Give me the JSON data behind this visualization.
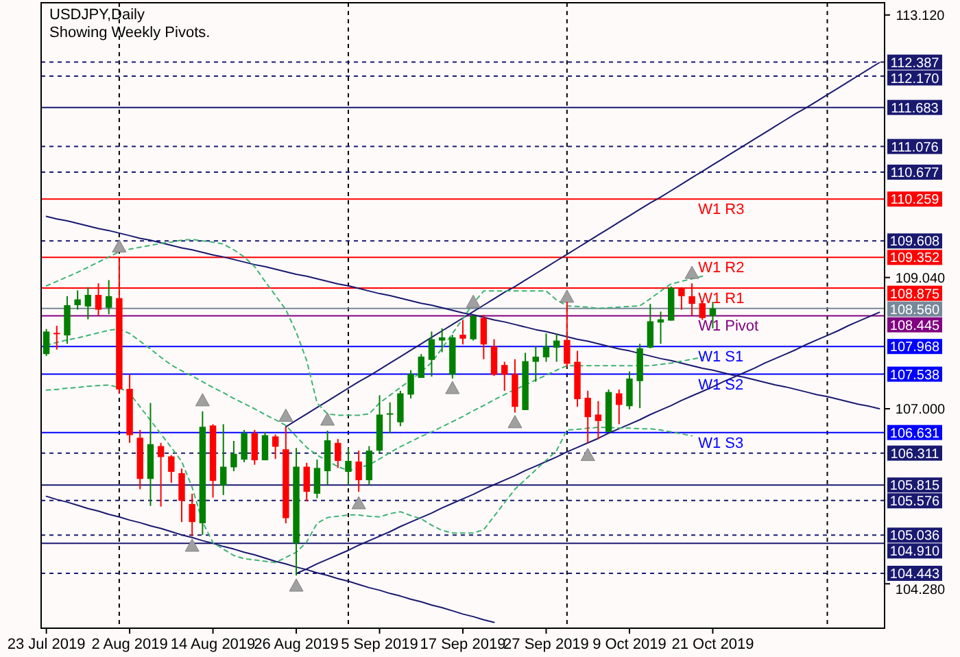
{
  "chart_data": {
    "type": "candlestick",
    "title": "USDJPY,Daily",
    "subtitle": "Showing Weekly Pivots.",
    "categories": [
      "23 Jul 2019",
      null,
      null,
      null,
      null,
      null,
      null,
      null,
      "2 Aug 2019",
      null,
      null,
      null,
      null,
      null,
      null,
      null,
      "14 Aug 2019",
      null,
      null,
      null,
      null,
      null,
      null,
      null,
      "26 Aug 2019",
      null,
      null,
      null,
      null,
      null,
      null,
      null,
      "5 Sep 2019",
      null,
      null,
      null,
      null,
      null,
      null,
      null,
      "17 Sep 2019",
      null,
      null,
      null,
      null,
      null,
      null,
      null,
      "27 Sep 2019",
      null,
      null,
      null,
      null,
      null,
      null,
      null,
      "9 Oct 2019",
      null,
      null,
      null,
      null,
      null,
      null,
      null,
      "21 Oct 2019",
      null,
      null,
      null,
      null,
      null,
      null,
      null,
      null,
      null,
      null,
      null,
      null,
      null,
      null,
      null,
      null
    ],
    "annotations": [
      {
        "text": "W1 R3",
        "y": 110.259
      },
      {
        "text": "W1 R2",
        "y": 109.352
      },
      {
        "text": "W1 R1",
        "y": 108.875
      },
      {
        "text": "W1 Pivot",
        "y": 108.445
      },
      {
        "text": "W1 S1",
        "y": 107.968
      },
      {
        "text": "W1 S2",
        "y": 107.538
      },
      {
        "text": "W1 S3",
        "y": 106.631
      }
    ],
    "ohlc": [
      [
        107.85,
        108.24,
        107.82,
        108.2
      ],
      [
        108.18,
        108.29,
        107.92,
        108.17
      ],
      [
        108.14,
        108.75,
        108.01,
        108.61
      ],
      [
        108.61,
        108.84,
        108.54,
        108.7
      ],
      [
        108.59,
        108.89,
        108.39,
        108.77
      ],
      [
        108.77,
        108.95,
        108.45,
        108.54
      ],
      [
        108.57,
        109.0,
        108.47,
        108.75
      ],
      [
        108.72,
        109.34,
        107.24,
        107.3
      ],
      [
        107.31,
        107.53,
        106.47,
        106.59
      ],
      [
        106.55,
        106.67,
        105.75,
        105.91
      ],
      [
        105.91,
        107.09,
        105.49,
        106.45
      ],
      [
        106.42,
        106.47,
        105.48,
        106.25
      ],
      [
        106.26,
        106.28,
        105.85,
        106.02
      ],
      [
        106.0,
        106.07,
        105.24,
        105.57
      ],
      [
        105.52,
        105.68,
        105.02,
        105.24
      ],
      [
        105.22,
        106.96,
        105.04,
        106.72
      ],
      [
        106.74,
        106.76,
        105.62,
        105.88
      ],
      [
        105.81,
        106.76,
        105.66,
        106.1
      ],
      [
        106.09,
        106.5,
        106.03,
        106.3
      ],
      [
        106.21,
        106.67,
        106.17,
        106.62
      ],
      [
        106.62,
        106.67,
        106.13,
        106.2
      ],
      [
        106.2,
        106.64,
        106.2,
        106.59
      ],
      [
        106.57,
        106.6,
        106.22,
        106.41
      ],
      [
        106.37,
        106.72,
        105.22,
        105.3
      ],
      [
        104.91,
        106.39,
        104.41,
        106.1
      ],
      [
        106.1,
        106.16,
        105.56,
        105.71
      ],
      [
        105.68,
        106.21,
        105.61,
        106.08
      ],
      [
        106.03,
        106.66,
        105.82,
        106.51
      ],
      [
        106.47,
        106.53,
        106.08,
        106.19
      ],
      [
        106.02,
        106.39,
        105.82,
        106.19
      ],
      [
        106.18,
        106.35,
        105.71,
        105.89
      ],
      [
        105.89,
        106.42,
        105.82,
        106.35
      ],
      [
        106.35,
        107.21,
        106.3,
        106.91
      ],
      [
        106.91,
        107.1,
        106.62,
        106.93
      ],
      [
        106.79,
        107.28,
        106.73,
        107.24
      ],
      [
        107.22,
        107.6,
        107.16,
        107.54
      ],
      [
        107.48,
        107.85,
        107.48,
        107.81
      ],
      [
        107.76,
        108.2,
        107.5,
        108.08
      ],
      [
        108.06,
        108.25,
        107.88,
        108.11
      ],
      [
        107.53,
        108.15,
        107.47,
        108.11
      ],
      [
        108.15,
        108.38,
        108.0,
        108.09
      ],
      [
        108.08,
        108.46,
        108.06,
        108.44
      ],
      [
        108.41,
        108.46,
        107.77,
        108.0
      ],
      [
        107.97,
        108.08,
        107.51,
        107.53
      ],
      [
        107.68,
        107.73,
        107.28,
        107.53
      ],
      [
        107.54,
        107.77,
        106.94,
        107.03
      ],
      [
        106.98,
        107.87,
        106.98,
        107.74
      ],
      [
        107.73,
        107.97,
        107.42,
        107.81
      ],
      [
        107.8,
        108.17,
        107.73,
        107.97
      ],
      [
        107.95,
        108.17,
        107.73,
        108.06
      ],
      [
        108.07,
        108.66,
        107.65,
        107.7
      ],
      [
        107.73,
        107.9,
        107.03,
        107.15
      ],
      [
        107.17,
        107.28,
        106.47,
        106.87
      ],
      [
        106.91,
        107.12,
        106.53,
        106.81
      ],
      [
        106.64,
        107.3,
        106.64,
        107.26
      ],
      [
        107.24,
        107.3,
        106.76,
        107.06
      ],
      [
        107.04,
        107.58,
        106.99,
        107.47
      ],
      [
        107.43,
        108.01,
        107.01,
        107.94
      ],
      [
        107.95,
        108.63,
        107.94,
        108.36
      ],
      [
        108.34,
        108.51,
        108.01,
        108.39
      ],
      [
        108.37,
        108.9,
        108.37,
        108.88
      ],
      [
        108.88,
        108.89,
        108.54,
        108.75
      ],
      [
        108.75,
        108.95,
        108.45,
        108.63
      ],
      [
        108.64,
        108.68,
        108.38,
        108.41
      ],
      [
        108.44,
        108.66,
        108.25,
        108.56
      ],
      null,
      null,
      null,
      null,
      null,
      null,
      null,
      null,
      null,
      null,
      null,
      null,
      null,
      null,
      null,
      null
    ],
    "series": [
      {
        "type": "line",
        "color": "#191970",
        "values": [
          109.99,
          109.95,
          109.92,
          109.88,
          109.84,
          109.8,
          109.77,
          109.73,
          109.69,
          109.65,
          109.62,
          109.58,
          109.54,
          109.5,
          109.47,
          109.43,
          109.39,
          109.36,
          109.32,
          109.28,
          109.24,
          109.21,
          109.17,
          109.13,
          109.09,
          109.06,
          109.02,
          108.98,
          108.94,
          108.91,
          108.87,
          108.83,
          108.79,
          108.76,
          108.72,
          108.68,
          108.64,
          108.61,
          108.57,
          108.53,
          108.49,
          108.46,
          108.42,
          108.38,
          108.35,
          108.31,
          108.27,
          108.23,
          108.2,
          108.16,
          108.12,
          108.08,
          108.05,
          108.01,
          107.97,
          107.93,
          107.9,
          107.86,
          107.82,
          107.78,
          107.75,
          107.71,
          107.67,
          107.63,
          107.6,
          107.56,
          107.52,
          107.49,
          107.45,
          107.41,
          107.37,
          107.34,
          107.3,
          107.26,
          107.22,
          107.19,
          107.15,
          107.11,
          107.07,
          107.04,
          107.0
        ]
      },
      {
        "type": "line",
        "color": "#191970",
        "values": [
          105.64,
          105.59,
          105.55,
          105.5,
          105.45,
          105.41,
          105.36,
          105.32,
          105.27,
          105.23,
          105.18,
          105.14,
          105.09,
          105.04,
          105.0,
          104.95,
          104.91,
          104.86,
          104.82,
          104.77,
          104.73,
          104.68,
          104.63,
          104.59,
          104.54,
          104.5,
          104.45,
          104.41,
          104.36,
          104.32,
          104.27,
          104.22,
          104.18,
          104.13,
          104.09,
          104.04,
          104.0,
          103.95,
          103.91,
          103.86,
          103.81,
          103.77,
          103.72,
          103.68,
          null,
          null,
          null,
          null,
          null,
          null,
          null,
          null,
          null,
          null,
          null,
          null,
          null,
          null,
          null,
          null,
          null,
          null,
          null,
          null,
          null,
          null,
          null,
          null,
          null,
          null,
          null,
          null,
          null,
          null,
          null,
          null,
          null,
          null,
          null,
          null,
          null
        ]
      },
      {
        "type": "line",
        "color": "#191970",
        "values": [
          null,
          null,
          null,
          null,
          null,
          null,
          null,
          null,
          null,
          null,
          null,
          null,
          null,
          null,
          null,
          null,
          null,
          null,
          null,
          null,
          null,
          null,
          null,
          null,
          104.44,
          104.51,
          104.59,
          104.66,
          104.73,
          104.8,
          104.88,
          104.95,
          105.02,
          105.09,
          105.17,
          105.24,
          105.31,
          105.38,
          105.46,
          105.53,
          105.6,
          105.67,
          105.75,
          105.82,
          105.89,
          105.96,
          106.04,
          106.11,
          106.18,
          106.25,
          106.33,
          106.4,
          106.47,
          106.54,
          106.62,
          106.69,
          106.76,
          106.83,
          106.91,
          106.98,
          107.05,
          107.13,
          107.2,
          107.27,
          107.34,
          107.42,
          107.49,
          107.56,
          107.63,
          107.71,
          107.78,
          107.85,
          107.92,
          108.0,
          108.07,
          108.14,
          108.21,
          108.29,
          108.36,
          108.43,
          108.5
        ]
      },
      {
        "type": "line",
        "color": "#191970",
        "values": [
          null,
          null,
          null,
          null,
          null,
          null,
          null,
          null,
          null,
          null,
          null,
          null,
          null,
          null,
          null,
          null,
          null,
          null,
          null,
          null,
          null,
          null,
          null,
          106.72,
          106.82,
          106.92,
          107.02,
          107.12,
          107.22,
          107.32,
          107.42,
          107.51,
          107.61,
          107.71,
          107.81,
          107.91,
          108.01,
          108.11,
          108.21,
          108.31,
          108.41,
          108.51,
          108.61,
          108.71,
          108.81,
          108.9,
          109.0,
          109.1,
          109.2,
          109.3,
          109.4,
          109.5,
          109.6,
          109.7,
          109.8,
          109.9,
          110.0,
          110.1,
          110.2,
          110.29,
          110.39,
          110.49,
          110.59,
          110.69,
          110.79,
          110.89,
          110.99,
          111.09,
          111.19,
          111.29,
          111.39,
          111.49,
          111.59,
          111.68,
          111.78,
          111.88,
          111.98,
          112.08,
          112.18,
          112.28,
          112.38
        ]
      },
      {
        "type": "line",
        "color": "#3cb371",
        "line_style": "dashed",
        "values": [
          108.91,
          108.98,
          109.05,
          109.12,
          109.2,
          109.28,
          109.36,
          109.44,
          109.48,
          109.51,
          109.54,
          109.57,
          109.59,
          109.62,
          109.63,
          109.61,
          109.59,
          109.56,
          109.47,
          109.36,
          109.21,
          108.98,
          108.76,
          108.54,
          108.19,
          107.75,
          107.09,
          106.92,
          106.9,
          106.9,
          106.9,
          106.92,
          107.09,
          107.21,
          107.33,
          107.45,
          107.57,
          107.72,
          107.94,
          108.17,
          108.4,
          108.64,
          108.83,
          108.83,
          108.83,
          108.83,
          108.83,
          108.83,
          108.83,
          108.69,
          108.6,
          108.59,
          108.58,
          108.56,
          108.57,
          108.58,
          108.59,
          108.6,
          108.71,
          108.83,
          108.94,
          108.98,
          109.02,
          109.06,
          null,
          null,
          null,
          null,
          null,
          null,
          null,
          null,
          null,
          null,
          null,
          null,
          null,
          null,
          null,
          null,
          null
        ]
      },
      {
        "type": "line",
        "color": "#3cb371",
        "line_style": "dashed",
        "values": [
          107.99,
          108.03,
          108.07,
          108.1,
          108.14,
          108.18,
          108.22,
          108.24,
          108.17,
          108.05,
          107.93,
          107.8,
          107.68,
          107.59,
          107.51,
          107.42,
          107.33,
          107.25,
          107.16,
          107.08,
          107.0,
          106.91,
          106.83,
          106.74,
          106.57,
          106.4,
          106.28,
          106.19,
          106.1,
          106.04,
          106.08,
          106.13,
          106.22,
          106.32,
          106.41,
          106.49,
          106.57,
          106.64,
          106.72,
          106.8,
          106.88,
          106.97,
          107.05,
          107.14,
          107.22,
          107.3,
          107.37,
          107.45,
          107.52,
          107.6,
          107.67,
          107.67,
          107.67,
          107.67,
          107.67,
          107.67,
          107.67,
          107.67,
          107.67,
          107.69,
          107.71,
          107.74,
          107.77,
          107.8,
          null,
          null,
          null,
          null,
          null,
          null,
          null,
          null,
          null,
          null,
          null,
          null,
          null,
          null,
          null,
          null,
          null
        ]
      },
      {
        "type": "line",
        "color": "#3cb371",
        "line_style": "dashed",
        "values": [
          107.29,
          107.3,
          107.32,
          107.33,
          107.35,
          107.36,
          107.37,
          107.33,
          107.24,
          107.03,
          106.82,
          106.61,
          106.4,
          106.18,
          105.78,
          105.24,
          104.92,
          104.82,
          104.72,
          104.67,
          104.65,
          104.63,
          104.61,
          104.69,
          104.77,
          104.93,
          105.22,
          105.31,
          105.33,
          105.35,
          105.35,
          105.33,
          105.32,
          105.37,
          105.4,
          105.34,
          105.29,
          105.19,
          105.11,
          105.07,
          105.07,
          105.07,
          105.12,
          105.33,
          105.54,
          105.75,
          105.9,
          106.05,
          106.2,
          106.35,
          106.67,
          106.68,
          106.7,
          106.71,
          106.71,
          106.7,
          106.7,
          106.69,
          106.69,
          106.67,
          106.64,
          106.61,
          106.58,
          null,
          null,
          null,
          null,
          null,
          null,
          null,
          null,
          null,
          null,
          null,
          null,
          null,
          null,
          null,
          null,
          null,
          null
        ]
      },
      {
        "type": "scatter",
        "marker": "triangle",
        "color": "#a0a0a0",
        "values": [
          null,
          null,
          null,
          null,
          null,
          null,
          null,
          109.52,
          null,
          null,
          null,
          null,
          null,
          null,
          null,
          107.13,
          null,
          null,
          null,
          null,
          null,
          null,
          null,
          106.89,
          null,
          null,
          null,
          106.83,
          null,
          null,
          null,
          null,
          null,
          null,
          null,
          null,
          null,
          null,
          null,
          null,
          null,
          108.66,
          null,
          null,
          null,
          null,
          null,
          null,
          null,
          null,
          108.74,
          null,
          null,
          null,
          null,
          null,
          null,
          null,
          null,
          null,
          null,
          null,
          109.11,
          null,
          null,
          null,
          null,
          null,
          null,
          null,
          null,
          null,
          null,
          null,
          null,
          null,
          null,
          null,
          null,
          null,
          null
        ]
      },
      {
        "type": "scatter",
        "marker": "triangle",
        "color": "#a0a0a0",
        "values": [
          null,
          null,
          null,
          null,
          null,
          null,
          null,
          null,
          null,
          null,
          null,
          null,
          null,
          null,
          104.87,
          null,
          null,
          null,
          null,
          null,
          null,
          null,
          null,
          null,
          104.25,
          null,
          null,
          null,
          null,
          null,
          105.53,
          null,
          null,
          null,
          null,
          null,
          null,
          null,
          null,
          107.32,
          null,
          null,
          null,
          null,
          null,
          106.79,
          null,
          null,
          null,
          null,
          null,
          null,
          106.28,
          null,
          null,
          null,
          null,
          null,
          null,
          null,
          null,
          null,
          null,
          null,
          null,
          null,
          null,
          null,
          null,
          null,
          null,
          null,
          null,
          null,
          null,
          null,
          null,
          null,
          null,
          null,
          null
        ]
      }
    ],
    "grid": "x",
    "ylim": [
      103.59,
      113.31
    ],
    "yticks": [
      {
        "value": 113.12,
        "label": "113.120"
      },
      {
        "value": 109.04,
        "label": "109.040"
      },
      {
        "value": 107,
        "label": "107.000"
      },
      {
        "value": 104.28,
        "label": "104.280"
      }
    ],
    "ref_lines": [
      {
        "axis": "y",
        "value": 112.387,
        "label": "112.387",
        "color": "#191970",
        "line_style": "dashed"
      },
      {
        "axis": "y",
        "value": 112.17,
        "label": "112.170",
        "color": "#191970",
        "line_style": "dashed"
      },
      {
        "axis": "y",
        "value": 111.683,
        "label": "111.683",
        "color": "#191970",
        "line_style": "solid"
      },
      {
        "axis": "y",
        "value": 111.076,
        "label": "111.076",
        "color": "#191970",
        "line_style": "dashed"
      },
      {
        "axis": "y",
        "value": 110.677,
        "label": "110.677",
        "color": "#191970",
        "line_style": "dashed"
      },
      {
        "axis": "y",
        "value": 110.259,
        "label": "110.259",
        "color": "#ff0000",
        "line_style": "solid"
      },
      {
        "axis": "y",
        "value": 109.608,
        "label": "109.608",
        "color": "#191970",
        "line_style": "dashed"
      },
      {
        "axis": "y",
        "value": 109.352,
        "label": "109.352",
        "color": "#ff0000",
        "line_style": "solid"
      },
      {
        "axis": "y",
        "value": 108.875,
        "label": "108.875",
        "color": "#ff0000",
        "line_style": "solid"
      },
      {
        "axis": "y",
        "value": 108.56,
        "label": "108.560",
        "color": "#778899",
        "line_style": "solid"
      },
      {
        "axis": "y",
        "value": 108.445,
        "label": "108.445",
        "color": "#800080",
        "line_style": "solid"
      },
      {
        "axis": "y",
        "value": 107.968,
        "label": "107.968",
        "color": "#0000ff",
        "line_style": "solid"
      },
      {
        "axis": "y",
        "value": 107.538,
        "label": "107.538",
        "color": "#0000ff",
        "line_style": "solid"
      },
      {
        "axis": "y",
        "value": 106.631,
        "label": "106.631",
        "color": "#0000ff",
        "line_style": "solid"
      },
      {
        "axis": "y",
        "value": 106.311,
        "label": "106.311",
        "color": "#191970",
        "line_style": "dashed"
      },
      {
        "axis": "y",
        "value": 105.815,
        "label": "105.815",
        "color": "#191970",
        "line_style": "solid"
      },
      {
        "axis": "y",
        "value": 105.576,
        "label": "105.576",
        "color": "#191970",
        "line_style": "dashed"
      },
      {
        "axis": "y",
        "value": 105.036,
        "label": "105.036",
        "color": "#191970",
        "line_style": "dashed"
      },
      {
        "axis": "y",
        "value": 104.91,
        "label": "104.910",
        "color": "#191970",
        "line_style": "solid"
      },
      {
        "axis": "y",
        "value": 104.443,
        "label": "104.443",
        "color": "#191970",
        "line_style": "dashed"
      }
    ]
  }
}
